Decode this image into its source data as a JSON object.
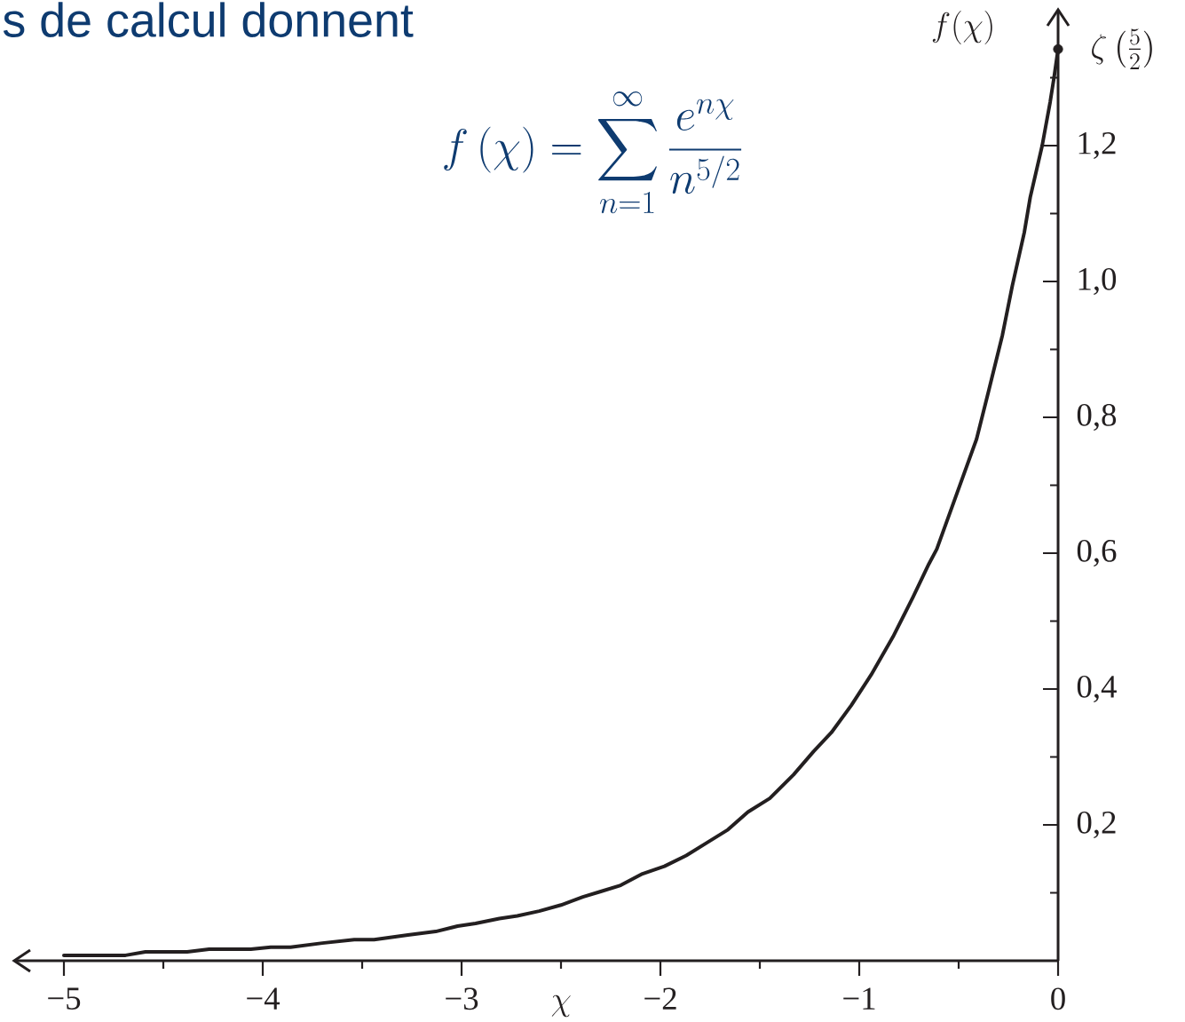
{
  "chart_data": {
    "type": "line",
    "title": "s de calcul donnent",
    "xlabel": "\\chi",
    "ylabel": "f(\\chi)",
    "series": [
      {
        "color": "#231f20",
        "x": [
          -5.0,
          -4.69,
          -4.59,
          -4.38,
          -4.27,
          -4.06,
          -3.96,
          -3.86,
          -3.7,
          -3.54,
          -3.44,
          -3.27,
          -3.13,
          -3.02,
          -2.93,
          -2.81,
          -2.72,
          -2.61,
          -2.5,
          -2.39,
          -2.3,
          -2.2,
          -2.09,
          -1.98,
          -1.87,
          -1.77,
          -1.66,
          -1.56,
          -1.45,
          -1.33,
          -1.23,
          -1.14,
          -1.04,
          -0.94,
          -0.83,
          -0.73,
          -0.65,
          -0.61,
          -0.41,
          -0.35,
          -0.28,
          -0.23,
          -0.17,
          -0.14,
          -0.08,
          -0.04,
          -0.02,
          0
        ],
        "values": [
          0.008,
          0.008,
          0.013,
          0.013,
          0.017,
          0.017,
          0.02,
          0.02,
          0.026,
          0.031,
          0.031,
          0.038,
          0.043,
          0.051,
          0.055,
          0.062,
          0.066,
          0.073,
          0.082,
          0.094,
          0.102,
          0.111,
          0.128,
          0.139,
          0.155,
          0.173,
          0.193,
          0.219,
          0.239,
          0.274,
          0.308,
          0.336,
          0.376,
          0.421,
          0.477,
          0.535,
          0.584,
          0.606,
          0.768,
          0.838,
          0.921,
          0.994,
          1.072,
          1.124,
          1.2,
          1.264,
          1.301,
          1.342
        ]
      },
      {
        "type": "scatter",
        "color": "#231f20",
        "marker": "circle",
        "x": [
          0
        ],
        "values": [
          1.342
        ]
      }
    ],
    "xlim": [
      -5.25,
      0
    ],
    "ylim": [
      0,
      1.4
    ],
    "xticks": [
      {
        "value": -5,
        "label": "−5"
      },
      {
        "value": -4.5,
        "label": null
      },
      {
        "value": -4,
        "label": "−4"
      },
      {
        "value": -3.5,
        "label": null
      },
      {
        "value": -3,
        "label": "−3"
      },
      {
        "value": -2.5,
        "label": null
      },
      {
        "value": -2,
        "label": "−2"
      },
      {
        "value": -1.5,
        "label": null
      },
      {
        "value": -1,
        "label": "−1"
      },
      {
        "value": -0.5,
        "label": null
      },
      0
    ],
    "yticks": [
      {
        "value": 0.1,
        "label": null
      },
      {
        "value": 0.2,
        "label": "0,2"
      },
      {
        "value": 0.3,
        "label": null
      },
      {
        "value": 0.4,
        "label": "0,4"
      },
      {
        "value": 0.5,
        "label": null
      },
      {
        "value": 0.6,
        "label": "0,6"
      },
      {
        "value": 0.7,
        "label": null
      },
      {
        "value": 0.8,
        "label": "0,8"
      },
      {
        "value": 0.9,
        "label": null
      },
      {
        "value": 1.0,
        "label": "1,0"
      },
      {
        "value": 1.1,
        "label": null
      },
      {
        "value": 1.2,
        "label": "1,2"
      },
      {
        "value": 1.3,
        "label": null
      }
    ],
    "annotations": [
      "f\\left(\\chi\\right)=\\sum_{n=1}^{\\infty}\\frac{e^{n\\chi}}{n^{5/2}}",
      {
        "text": "\\zeta\\left(\\frac{5}{2}\\right)",
        "x": 0,
        "y": 1.342
      }
    ]
  }
}
